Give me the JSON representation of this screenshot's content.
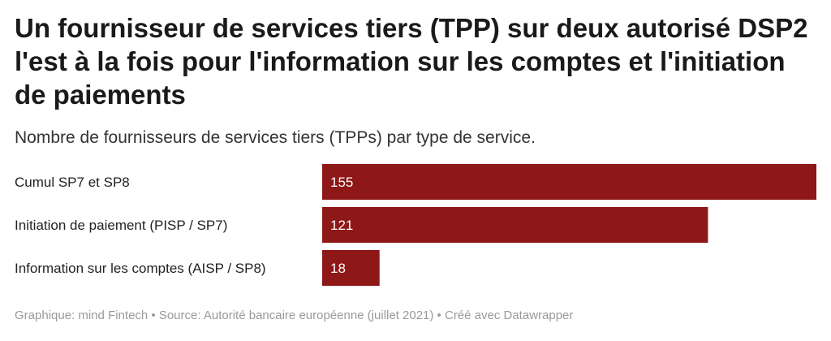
{
  "title": "Un fournisseur de services tiers (TPP) sur deux autorisé DSP2 l'est à la fois pour l'information sur les comptes et l'initiation de paiements",
  "subtitle": "Nombre de fournisseurs de services tiers (TPPs) par type de service.",
  "footer": "Graphique: mind Fintech • Source: Autorité bancaire européenne (juillet 2021) • Créé avec Datawrapper",
  "colors": {
    "bar": "#8e1717"
  },
  "chart_data": {
    "type": "bar",
    "orientation": "horizontal",
    "categories": [
      "Cumul SP7 et SP8",
      "Initiation de paiement (PISP / SP7)",
      "Information sur les comptes (AISP / SP8)"
    ],
    "values": [
      155,
      121,
      18
    ],
    "title": "Un fournisseur de services tiers (TPP) sur deux autorisé DSP2 l'est à la fois pour l'information sur les comptes et l'initiation de paiements",
    "xlabel": "",
    "ylabel": "",
    "xlim": [
      0,
      155
    ],
    "grid": false,
    "legend": "none"
  }
}
